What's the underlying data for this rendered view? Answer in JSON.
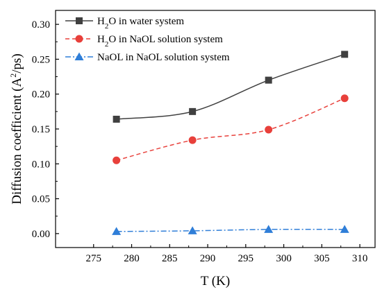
{
  "chart_data": {
    "type": "line",
    "xlabel": "T (K)",
    "ylabel_parts": {
      "pre": "Diffusion coefficient (A",
      "sup": "2",
      "post": "/ps)"
    },
    "xlim": [
      270,
      312
    ],
    "ylim": [
      -0.02,
      0.32
    ],
    "x_ticks": [
      275,
      280,
      285,
      290,
      295,
      300,
      305,
      310
    ],
    "y_ticks": [
      0.0,
      0.05,
      0.1,
      0.15,
      0.2,
      0.25,
      0.3
    ],
    "x_tick_labels": [
      "275",
      "280",
      "285",
      "290",
      "295",
      "300",
      "305",
      "310"
    ],
    "y_tick_labels": [
      "0.00",
      "0.05",
      "0.10",
      "0.15",
      "0.20",
      "0.25",
      "0.30"
    ],
    "grid": false,
    "legend_position": "top-left",
    "x": [
      278,
      288,
      298,
      308
    ],
    "series": [
      {
        "name_parts": {
          "pre": "H",
          "sub": "2",
          "post": "O in water system"
        },
        "values": [
          0.164,
          0.175,
          0.22,
          0.257
        ],
        "color": "#404040",
        "marker": "square",
        "dash": "solid"
      },
      {
        "name_parts": {
          "pre": "H",
          "sub": "2",
          "post": "O in NaOL solution system"
        },
        "values": [
          0.105,
          0.134,
          0.149,
          0.194
        ],
        "color": "#e8403b",
        "marker": "circle",
        "dash": "dashed"
      },
      {
        "name_parts": {
          "pre": "NaOL in NaOL solution system",
          "sub": "",
          "post": ""
        },
        "values": [
          0.003,
          0.004,
          0.006,
          0.006
        ],
        "color": "#2f7ed8",
        "marker": "triangle",
        "dash": "dashdot"
      }
    ]
  }
}
